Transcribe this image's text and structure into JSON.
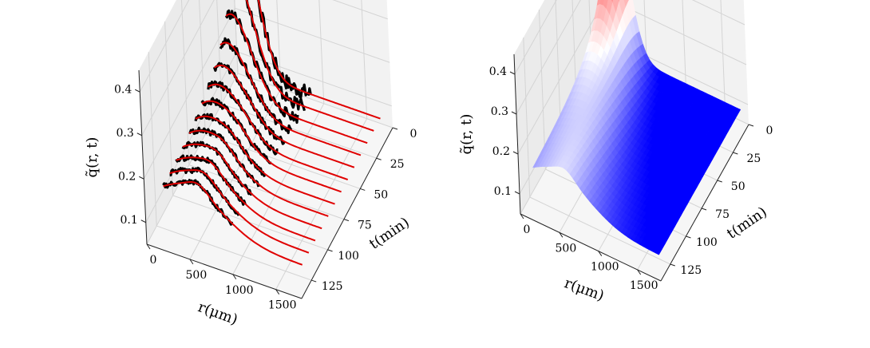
{
  "chart_data": [
    {
      "panel": "left",
      "type": "line",
      "view": "3d",
      "xlabel": "r(μm)",
      "ylabel": "t(min)",
      "zlabel": "q̃(r, t)",
      "xlim": [
        0,
        1800
      ],
      "ylim": [
        0,
        140
      ],
      "zlim": [
        0.05,
        0.45
      ],
      "xticks": [
        0,
        500,
        1000,
        1500
      ],
      "yticks": [
        0,
        25,
        50,
        75,
        100,
        125
      ],
      "zticks": [
        0.1,
        0.2,
        0.3,
        0.4
      ],
      "grid": true,
      "series_colors": {
        "data": "#000000",
        "fit": "#e00000"
      },
      "r_values": [
        100,
        150,
        200,
        250,
        300,
        400,
        500,
        600,
        700,
        800,
        1000,
        1200,
        1400,
        1600,
        1700
      ],
      "t_values": [
        5,
        15,
        25,
        35,
        45,
        55,
        65,
        75,
        85,
        95,
        105,
        115,
        125
      ],
      "peak_q": [
        0.4,
        0.33,
        0.3,
        0.26,
        0.23,
        0.2,
        0.18,
        0.17,
        0.15,
        0.14,
        0.13,
        0.12,
        0.11
      ],
      "base_q": 0.08
    },
    {
      "panel": "right",
      "type": "surface",
      "view": "3d",
      "xlabel": "r(μm)",
      "ylabel": "t(min)",
      "zlabel": "q̃(r, t)",
      "xlim": [
        0,
        1800
      ],
      "ylim": [
        0,
        140
      ],
      "zlim": [
        0.05,
        0.45
      ],
      "xticks": [
        0,
        500,
        1000,
        1500
      ],
      "yticks": [
        0,
        25,
        50,
        75,
        100,
        125
      ],
      "zticks": [
        0.1,
        0.2,
        0.3,
        0.4
      ],
      "grid": true,
      "colormap": [
        "#0000ff",
        "#ffffff",
        "#ff0000"
      ]
    }
  ]
}
